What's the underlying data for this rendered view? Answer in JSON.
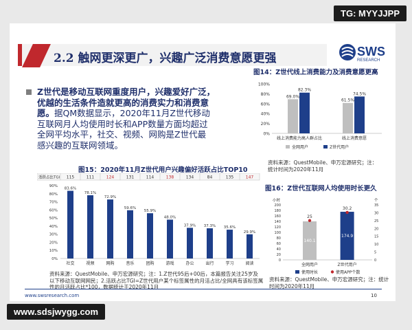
{
  "watermark_top": "TG: MYYJJPP",
  "watermark_bottom": "www.sdsjwygg.com",
  "header": {
    "title": "2.2 触网更深更广，兴趣广泛消费意愿更强",
    "logo_text": "SWS",
    "logo_sub": "RESEARCH"
  },
  "bullet": {
    "lines": [
      "Z世代是移动互联网重度用户，兴趣爱好广泛，",
      "优越的生活条件造就更高的消费实力和消费意",
      "愿。据QM数据显示，2020年11月Z世代移动",
      "互联网月人均使用时长和APP数量方面均超过",
      "全网平均水平，社交、视频、网购是Z世代最",
      "感兴趣的互联网领域。"
    ]
  },
  "fig14": {
    "title": "图14：Z世代线上消费能力及消费意愿更高",
    "source_lines": [
      "资料来源：QuestMobile、申万宏源研究；注：",
      "统计时间为2020年11月"
    ]
  },
  "fig15": {
    "title": "图15：2020年11月Z世代用户兴趣偏好活跃占比TOP10",
    "source_lines": [
      "资料来源：QuestMobile、申万宏源研究；注：1.Z世代95后+00后，本篇报告关注25岁及",
      "以下移动互联网网民；2.活跃占比TGI=Z世代用户某个标签属性的月活占比/全网具有该标签属",
      "性的月活跃占比*100，数据统计于2020年11月"
    ]
  },
  "fig16": {
    "title": "图16：Z世代互联网人均使用时长更久",
    "source_lines": [
      "资料来源：QuestMobile、申万宏源研究；注：统计",
      "时间为2020年11月"
    ]
  },
  "footer": {
    "url": "www.swsresearch.com",
    "page": "10"
  },
  "colors": {
    "dark_blue": "#1e3f8a",
    "light_gray": "#bfbfbf",
    "accent_red": "#c0282d",
    "navy_text": "#1f2f6b"
  },
  "chart_data": [
    {
      "type": "bar",
      "id": "fig14",
      "categories": [
        "线上消费能力高人群占比",
        "线上消费意愿"
      ],
      "series": [
        {
          "name": "全网用户",
          "values": [
            69.0,
            61.5
          ],
          "labels": [
            "69.0%",
            "61.5%"
          ]
        },
        {
          "name": "Z世代用户",
          "values": [
            82.3,
            74.5
          ],
          "labels": [
            "82.3%",
            "74.5%"
          ]
        }
      ],
      "ylim": [
        0,
        100
      ],
      "yticks": [
        "0%",
        "20%",
        "40%",
        "60%",
        "80%",
        "100%"
      ],
      "legend_position": "bottom"
    },
    {
      "type": "bar",
      "id": "fig15",
      "categories": [
        "社交",
        "视频",
        "网购",
        "音乐",
        "团购",
        "游戏",
        "办公",
        "出行",
        "学习",
        "阅读"
      ],
      "values": [
        83.6,
        78.1,
        72.9,
        59.6,
        55.9,
        48.0,
        37.9,
        37.3,
        35.6,
        29.9
      ],
      "value_labels": [
        "83.6%",
        "78.1%",
        "72.9%",
        "59.6%",
        "55.9%",
        "48.0%",
        "37.9%",
        "37.3%",
        "35.6%",
        "29.9%"
      ],
      "tgi_label": "活跃占比TGI",
      "tgi": [
        "115",
        "111",
        "124",
        "131",
        "114",
        "138",
        "134",
        "84",
        "135",
        "147"
      ],
      "tgi_highlight": [
        false,
        false,
        true,
        false,
        false,
        true,
        false,
        false,
        false,
        true
      ],
      "ylim": [
        0,
        90
      ],
      "yticks": [
        "0%",
        "10%",
        "20%",
        "30%",
        "40%",
        "50%",
        "60%",
        "70%",
        "80%",
        "90%"
      ]
    },
    {
      "type": "bar",
      "id": "fig16",
      "categories": [
        "全网用户",
        "Z世代用户"
      ],
      "series": [
        {
          "name": "使用时长",
          "values": [
            140.1,
            174.9
          ],
          "labels": [
            "140.1",
            "174.9"
          ]
        },
        {
          "name": "使用APP个数",
          "values": [
            25,
            30.2
          ],
          "labels": [
            "25",
            "30.2"
          ]
        }
      ],
      "y_left": {
        "label": "小时",
        "ylim": [
          0,
          200
        ],
        "yticks": [
          "0",
          "20",
          "40",
          "60",
          "80",
          "100",
          "120",
          "140",
          "160",
          "180",
          "200"
        ]
      },
      "y_right": {
        "label": "个",
        "ylim": [
          0,
          35
        ],
        "yticks": [
          "0",
          "5",
          "10",
          "15",
          "20",
          "25",
          "30",
          "35"
        ]
      },
      "legend_position": "bottom"
    }
  ]
}
